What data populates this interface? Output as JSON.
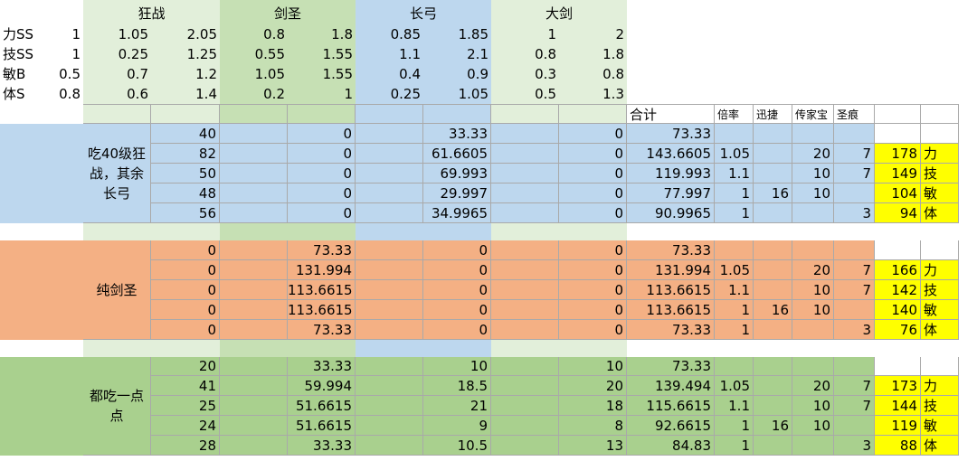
{
  "params": {
    "rows": [
      {
        "label": "力SS",
        "w": "1"
      },
      {
        "label": "技SS",
        "w": "1"
      },
      {
        "label": "敏B",
        "w": "0.5"
      },
      {
        "label": "体S",
        "w": "0.8"
      }
    ]
  },
  "weapons": [
    {
      "name": "狂战",
      "rows": [
        [
          "1.05",
          "2.05"
        ],
        [
          "0.25",
          "1.25"
        ],
        [
          "0.7",
          "1.2"
        ],
        [
          "0.6",
          "1.4"
        ]
      ]
    },
    {
      "name": "剑圣",
      "rows": [
        [
          "0.8",
          "1.8"
        ],
        [
          "0.55",
          "1.55"
        ],
        [
          "1.05",
          "1.55"
        ],
        [
          "0.2",
          "1"
        ]
      ]
    },
    {
      "name": "长弓",
      "rows": [
        [
          "0.85",
          "1.85"
        ],
        [
          "1.1",
          "2.1"
        ],
        [
          "0.4",
          "0.9"
        ],
        [
          "0.25",
          "1.05"
        ]
      ]
    },
    {
      "name": "大剑",
      "rows": [
        [
          "1",
          "2"
        ],
        [
          "0.8",
          "1.8"
        ],
        [
          "0.3",
          "0.8"
        ],
        [
          "0.5",
          "1.3"
        ]
      ]
    }
  ],
  "header": {
    "total": "合计",
    "rate": "倍率",
    "agile": "迅捷",
    "heirloom": "传家宝",
    "stigma": "圣痕"
  },
  "colors": {
    "blue": "#bdd7ee",
    "green_light": "#e2efda",
    "green_mid": "#c6e0b4",
    "orange": "#f4b084",
    "green_dark": "#a9d08e",
    "yellow": "#ffff00"
  },
  "blocks": [
    {
      "label": "吃40级狂战，其余长弓",
      "rows": [
        {
          "a": "40",
          "b": "0",
          "c": "33.33",
          "d": "0",
          "total": "73.33",
          "rate": "",
          "agile": "",
          "heir": "",
          "stig": "",
          "res": "",
          "stat": ""
        },
        {
          "a": "82",
          "b": "0",
          "c": "61.6605",
          "d": "0",
          "total": "143.6605",
          "rate": "1.05",
          "agile": "",
          "heir": "20",
          "stig": "7",
          "res": "178",
          "stat": "力"
        },
        {
          "a": "50",
          "b": "0",
          "c": "69.993",
          "d": "0",
          "total": "119.993",
          "rate": "1.1",
          "agile": "",
          "heir": "10",
          "stig": "7",
          "res": "149",
          "stat": "技"
        },
        {
          "a": "48",
          "b": "0",
          "c": "29.997",
          "d": "0",
          "total": "77.997",
          "rate": "1",
          "agile": "16",
          "heir": "10",
          "stig": "",
          "res": "104",
          "stat": "敏"
        },
        {
          "a": "56",
          "b": "0",
          "c": "34.9965",
          "d": "0",
          "total": "90.9965",
          "rate": "1",
          "agile": "",
          "heir": "",
          "stig": "3",
          "res": "94",
          "stat": "体"
        }
      ]
    },
    {
      "label": "纯剑圣",
      "rows": [
        {
          "a": "0",
          "b": "73.33",
          "c": "0",
          "d": "0",
          "total": "73.33",
          "rate": "",
          "agile": "",
          "heir": "",
          "stig": "",
          "res": "",
          "stat": ""
        },
        {
          "a": "0",
          "b": "131.994",
          "c": "0",
          "d": "0",
          "total": "131.994",
          "rate": "1.05",
          "agile": "",
          "heir": "20",
          "stig": "7",
          "res": "166",
          "stat": "力"
        },
        {
          "a": "0",
          "b": "113.6615",
          "c": "0",
          "d": "0",
          "total": "113.6615",
          "rate": "1.1",
          "agile": "",
          "heir": "10",
          "stig": "7",
          "res": "142",
          "stat": "技"
        },
        {
          "a": "0",
          "b": "113.6615",
          "c": "0",
          "d": "0",
          "total": "113.6615",
          "rate": "1",
          "agile": "16",
          "heir": "10",
          "stig": "",
          "res": "140",
          "stat": "敏"
        },
        {
          "a": "0",
          "b": "73.33",
          "c": "0",
          "d": "0",
          "total": "73.33",
          "rate": "1",
          "agile": "",
          "heir": "",
          "stig": "3",
          "res": "76",
          "stat": "体"
        }
      ]
    },
    {
      "label": "都吃一点点",
      "rows": [
        {
          "a": "20",
          "b": "33.33",
          "c": "10",
          "d": "10",
          "total": "73.33",
          "rate": "",
          "agile": "",
          "heir": "",
          "stig": "",
          "res": "",
          "stat": ""
        },
        {
          "a": "41",
          "b": "59.994",
          "c": "18.5",
          "d": "20",
          "total": "139.494",
          "rate": "1.05",
          "agile": "",
          "heir": "20",
          "stig": "7",
          "res": "173",
          "stat": "力"
        },
        {
          "a": "25",
          "b": "51.6615",
          "c": "21",
          "d": "18",
          "total": "115.6615",
          "rate": "1.1",
          "agile": "",
          "heir": "10",
          "stig": "7",
          "res": "144",
          "stat": "技"
        },
        {
          "a": "24",
          "b": "51.6615",
          "c": "9",
          "d": "8",
          "total": "92.6615",
          "rate": "1",
          "agile": "16",
          "heir": "10",
          "stig": "",
          "res": "119",
          "stat": "敏"
        },
        {
          "a": "28",
          "b": "33.33",
          "c": "10.5",
          "d": "13",
          "total": "84.83",
          "rate": "1",
          "agile": "",
          "heir": "",
          "stig": "3",
          "res": "88",
          "stat": "体"
        }
      ]
    }
  ]
}
